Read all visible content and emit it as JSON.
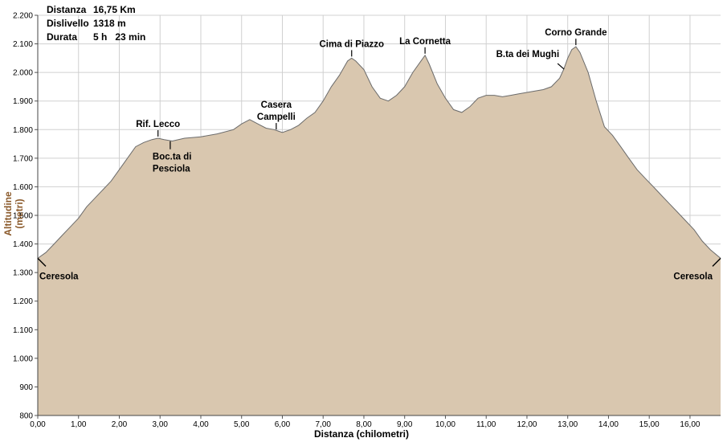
{
  "stats": {
    "distance_label": "Distanza",
    "distance_value": "16,75 Km",
    "elevation_label": "Dislivello",
    "elevation_value": "1318 m",
    "duration_label": "Durata",
    "duration_value": "5 h   23 min"
  },
  "colors": {
    "fill": "#d9c7af",
    "outline": "#6b6b6b",
    "grid": "#d0d0d0",
    "background": "#ffffff",
    "ylabel": "#8b5a2b"
  },
  "chart_data": {
    "type": "area",
    "xlabel": "Distanza (chilometri)",
    "ylabel": "Altitudine (metri)",
    "xlim": [
      0,
      16.75
    ],
    "ylim": [
      800,
      2200
    ],
    "grid": true,
    "xticks": [
      "0,00",
      "1,00",
      "2,00",
      "3,00",
      "4,00",
      "5,00",
      "6,00",
      "7,00",
      "8,00",
      "9,00",
      "10,00",
      "11,00",
      "12,00",
      "13,00",
      "14,00",
      "15,00",
      "16,00"
    ],
    "yticks": [
      "800",
      "900",
      "1.000",
      "1.100",
      "1.200",
      "1.300",
      "1.400",
      "1.500",
      "1.600",
      "1.700",
      "1.800",
      "1.900",
      "2.000",
      "2.100",
      "2.200"
    ],
    "x": [
      0,
      0.2,
      0.4,
      0.6,
      0.8,
      1.0,
      1.2,
      1.4,
      1.6,
      1.8,
      2.0,
      2.2,
      2.4,
      2.6,
      2.8,
      2.95,
      3.1,
      3.3,
      3.6,
      4.0,
      4.4,
      4.8,
      5.0,
      5.2,
      5.4,
      5.6,
      5.8,
      5.9,
      6.0,
      6.2,
      6.4,
      6.6,
      6.8,
      7.0,
      7.2,
      7.4,
      7.6,
      7.7,
      7.8,
      8.0,
      8.2,
      8.4,
      8.6,
      8.8,
      9.0,
      9.2,
      9.4,
      9.5,
      9.6,
      9.8,
      10.0,
      10.2,
      10.4,
      10.6,
      10.8,
      11.0,
      11.2,
      11.4,
      11.6,
      11.8,
      12.0,
      12.2,
      12.4,
      12.6,
      12.8,
      12.9,
      13.0,
      13.1,
      13.2,
      13.3,
      13.5,
      13.7,
      13.9,
      14.1,
      14.3,
      14.5,
      14.7,
      14.9,
      15.1,
      15.3,
      15.5,
      15.7,
      15.9,
      16.1,
      16.3,
      16.5,
      16.75
    ],
    "y": [
      1350,
      1370,
      1400,
      1430,
      1460,
      1490,
      1530,
      1560,
      1590,
      1620,
      1660,
      1700,
      1740,
      1755,
      1765,
      1770,
      1765,
      1760,
      1770,
      1775,
      1785,
      1800,
      1820,
      1835,
      1820,
      1805,
      1800,
      1795,
      1790,
      1800,
      1815,
      1840,
      1860,
      1900,
      1950,
      1990,
      2040,
      2050,
      2040,
      2010,
      1950,
      1910,
      1900,
      1920,
      1950,
      2000,
      2040,
      2060,
      2030,
      1960,
      1910,
      1870,
      1860,
      1880,
      1910,
      1920,
      1920,
      1915,
      1920,
      1925,
      1930,
      1935,
      1940,
      1950,
      1980,
      2010,
      2050,
      2080,
      2090,
      2070,
      2000,
      1900,
      1810,
      1780,
      1740,
      1700,
      1660,
      1630,
      1600,
      1570,
      1540,
      1510,
      1480,
      1450,
      1410,
      1380,
      1350
    ]
  },
  "annotations": [
    {
      "text": "Ceresola",
      "x": 0,
      "y": 1350,
      "kind": "start"
    },
    {
      "text": "Rif. Lecco",
      "x": 2.95,
      "y": 1770,
      "kind": "above"
    },
    {
      "text": "Boc.ta di Pesciola",
      "x": 3.25,
      "y": 1765,
      "kind": "below"
    },
    {
      "text": "Casera Campelli",
      "x": 5.85,
      "y": 1795,
      "kind": "above"
    },
    {
      "text": "Cima di Piazzo",
      "x": 7.7,
      "y": 2050,
      "kind": "above"
    },
    {
      "text": "La Cornetta",
      "x": 9.5,
      "y": 2060,
      "kind": "above"
    },
    {
      "text": "B.ta dei Mughi",
      "x": 12.95,
      "y": 2020,
      "kind": "left"
    },
    {
      "text": "Corno Grande",
      "x": 13.2,
      "y": 2090,
      "kind": "above"
    },
    {
      "text": "Ceresola",
      "x": 16.75,
      "y": 1350,
      "kind": "end"
    }
  ]
}
